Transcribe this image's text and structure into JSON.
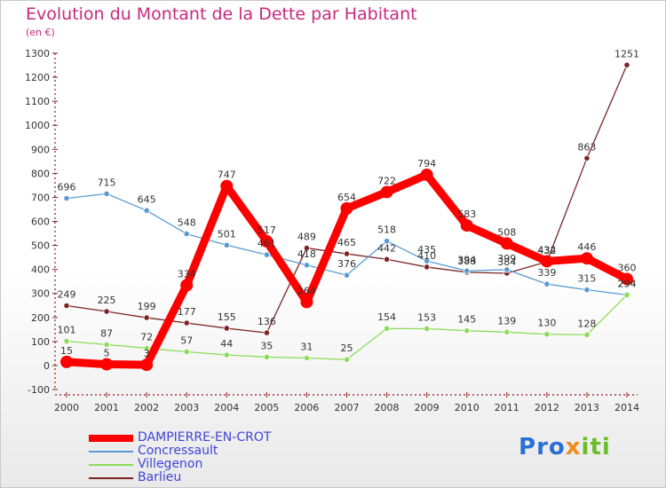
{
  "title": "Evolution du Montant de la Dette par Habitant",
  "subtitle": "(en €)",
  "logo": {
    "text": "Proxiti"
  },
  "chart_data": {
    "type": "line",
    "x": [
      2000,
      2001,
      2002,
      2003,
      2004,
      2005,
      2006,
      2007,
      2008,
      2009,
      2010,
      2011,
      2012,
      2013,
      2014
    ],
    "ylim": [
      -100,
      1300
    ],
    "yticks": [
      -100,
      0,
      100,
      200,
      300,
      400,
      500,
      600,
      700,
      800,
      900,
      1000,
      1100,
      1200,
      1300
    ],
    "grid": false,
    "legend_position": "bottom-left",
    "series": [
      {
        "name": "DAMPIERRE-EN-CROT",
        "color": "#ff0000",
        "values": [
          15,
          5,
          3,
          334,
          747,
          517,
          264,
          654,
          722,
          794,
          583,
          508,
          434,
          446,
          360
        ]
      },
      {
        "name": "Concressault",
        "color": "#5a9bd4",
        "values": [
          696,
          715,
          645,
          548,
          501,
          461,
          418,
          376,
          518,
          435,
          394,
          399,
          339,
          315,
          294
        ]
      },
      {
        "name": "Villegenon",
        "color": "#8bdc5a",
        "values": [
          101,
          87,
          72,
          57,
          44,
          35,
          31,
          25,
          154,
          153,
          145,
          139,
          130,
          128,
          294
        ]
      },
      {
        "name": "Barlieu",
        "color": "#7b2424",
        "values": [
          249,
          225,
          199,
          177,
          155,
          136,
          489,
          465,
          442,
          410,
          388,
          384,
          432,
          863,
          1251
        ]
      }
    ]
  }
}
